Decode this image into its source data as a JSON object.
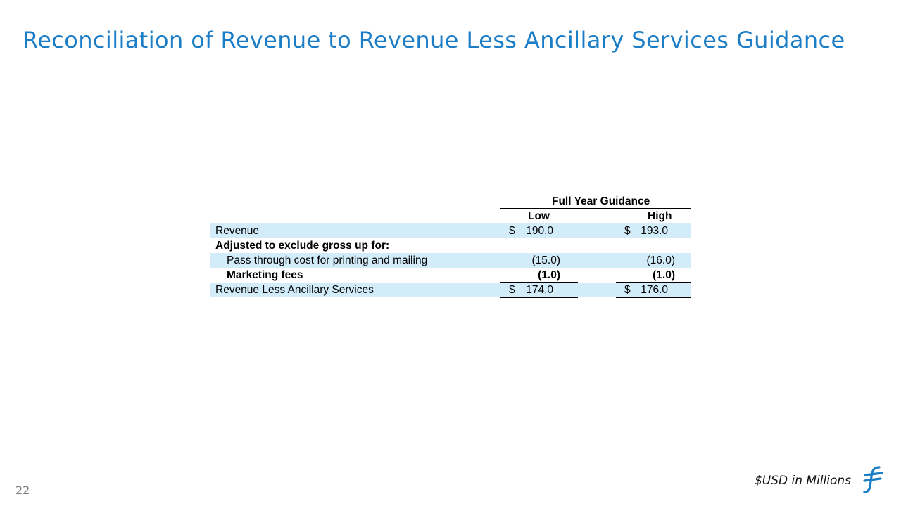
{
  "slide": {
    "title": "Reconciliation of Revenue to Revenue Less Ancillary Services Guidance",
    "page_number": "22",
    "unit_note": "$USD in Millions",
    "accent_color": "#1b7dc6",
    "shade_color": "#d2ecfa",
    "logo_icon": "brand-f-logo-icon"
  },
  "table": {
    "group_header": "Full Year Guidance",
    "col_low": "Low",
    "col_high": "High",
    "rows": [
      {
        "label": "Revenue",
        "low_symbol": "$",
        "low": "190.0",
        "high_symbol": "$",
        "high": "193.0"
      },
      {
        "label": "Adjusted to exclude gross up for:"
      },
      {
        "label": "Pass through cost for printing and mailing",
        "low": "(15.0)",
        "high": "(16.0)"
      },
      {
        "label": "Marketing fees",
        "low": "(1.0)",
        "high": "(1.0)"
      },
      {
        "label": "Revenue Less Ancillary Services",
        "low_symbol": "$",
        "low": "174.0",
        "high_symbol": "$",
        "high": "176.0"
      }
    ]
  }
}
